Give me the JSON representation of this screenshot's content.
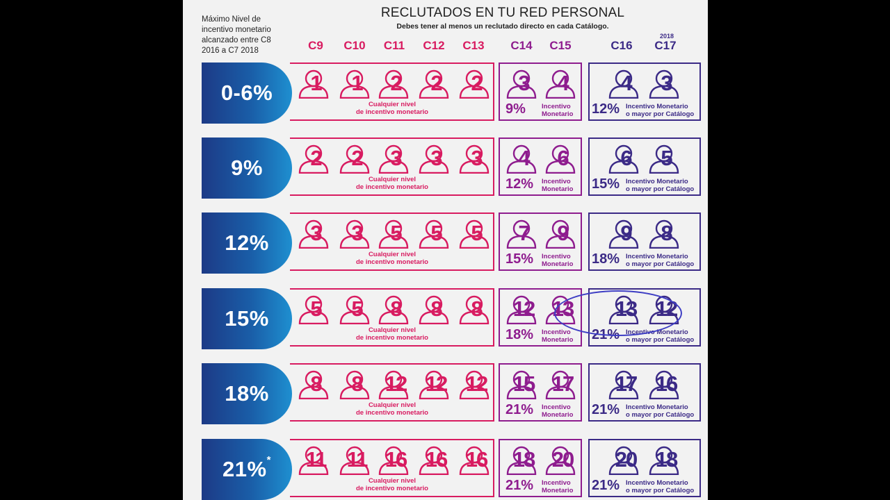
{
  "side_note": [
    "Máximo Nivel de",
    "incentivo monetario",
    "alcanzado entre C8",
    "2016 a C7 2018"
  ],
  "title": "RECLUTADOS EN TU RED PERSONAL",
  "subtitle": "Debes tener al menos un reclutado directo en cada Catálogo.",
  "year_tag": "2018",
  "catalogs": [
    "C9",
    "C10",
    "C11",
    "C12",
    "C13",
    "C14",
    "C15",
    "C16",
    "C17"
  ],
  "any_level_text": [
    "Cualquier nivel",
    "de incentivo monetario"
  ],
  "purple_note": [
    "Incentivo",
    "Monetario"
  ],
  "navy_note": [
    "Incentivo Monetario",
    "o mayor por Catálogo"
  ],
  "colors": {
    "pink": "#d81b60",
    "purple": "#8e1c8e",
    "navy": "#3b2a86",
    "highlight": "#3e3ec4"
  },
  "rows": [
    {
      "level": "0-6%",
      "asterisk": "",
      "pink": [
        "1",
        "1",
        "2",
        "2",
        "2"
      ],
      "purple": [
        "3",
        "4"
      ],
      "purple_pct": "9%",
      "navy": [
        "4",
        "3"
      ],
      "navy_pct": "12%"
    },
    {
      "level": "9%",
      "asterisk": "",
      "pink": [
        "2",
        "2",
        "3",
        "3",
        "3"
      ],
      "purple": [
        "4",
        "6"
      ],
      "purple_pct": "12%",
      "navy": [
        "6",
        "5"
      ],
      "navy_pct": "15%"
    },
    {
      "level": "12%",
      "asterisk": "",
      "pink": [
        "3",
        "3",
        "5",
        "5",
        "5"
      ],
      "purple": [
        "7",
        "9"
      ],
      "purple_pct": "15%",
      "navy": [
        "9",
        "8"
      ],
      "navy_pct": "18%"
    },
    {
      "level": "15%",
      "asterisk": "",
      "pink": [
        "5",
        "5",
        "8",
        "8",
        "8"
      ],
      "purple": [
        "12",
        "13"
      ],
      "purple_pct": "18%",
      "navy": [
        "13",
        "12"
      ],
      "navy_pct": "21%"
    },
    {
      "level": "18%",
      "asterisk": "",
      "pink": [
        "8",
        "8",
        "12",
        "12",
        "12"
      ],
      "purple": [
        "15",
        "17"
      ],
      "purple_pct": "21%",
      "navy": [
        "17",
        "16"
      ],
      "navy_pct": "21%"
    },
    {
      "level": "21%",
      "asterisk": "*",
      "pink": [
        "11",
        "11",
        "16",
        "16",
        "16"
      ],
      "purple": [
        "18",
        "20"
      ],
      "purple_pct": "21%",
      "navy": [
        "20",
        "18"
      ],
      "navy_pct": "21%"
    }
  ]
}
